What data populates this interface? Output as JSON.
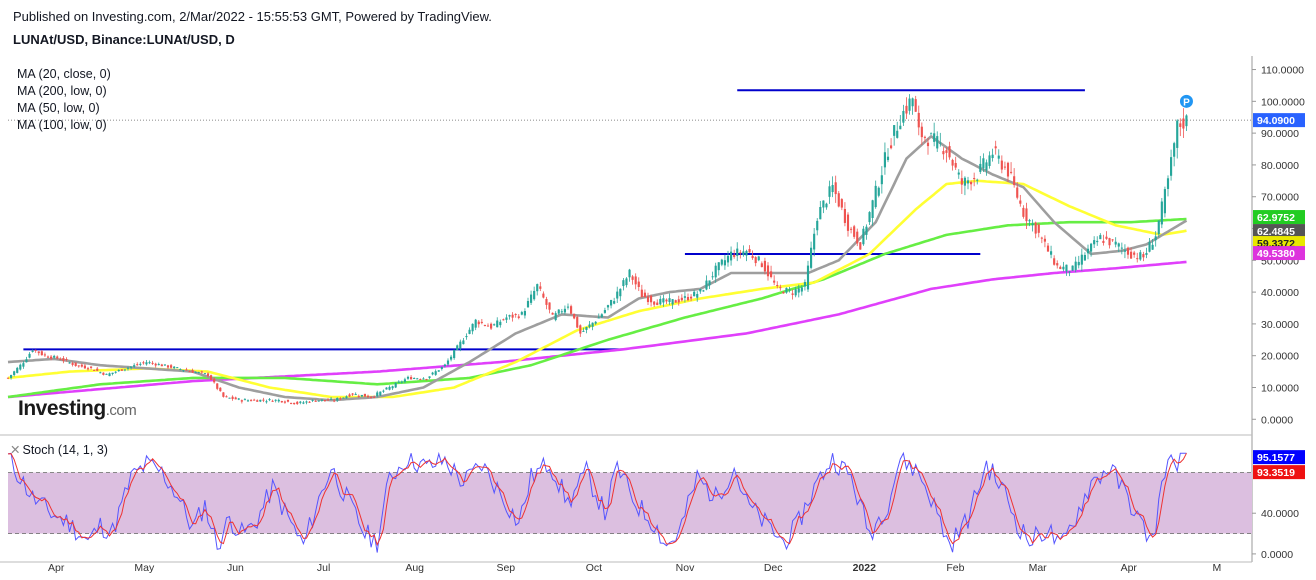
{
  "header": {
    "published": "Published on Investing.com, 2/Mar/2022 - 15:55:53 GMT, Powered by TradingView.",
    "symbol": "LUNAt/USD, Binance:LUNAt/USD, D"
  },
  "logo": {
    "main": "Investing",
    "suffix": ".com"
  },
  "legend": {
    "ma": [
      {
        "label": "MA (20, close, 0)",
        "color": "#9e9e9e"
      },
      {
        "label": "MA (200, low, 0)",
        "color": "#e040fb"
      },
      {
        "label": "MA (50, low, 0)",
        "color": "#ffff33"
      },
      {
        "label": "MA (100, low, 0)",
        "color": "#66ee44"
      }
    ],
    "stoch": "Stoch (14, 1, 3)"
  },
  "colors": {
    "up": "#26a69a",
    "down": "#ef5350",
    "level_line": "#0000cc",
    "stoch_k": "#5555ff",
    "stoch_d": "#ee3333",
    "stoch_band": "#dcbfe0"
  },
  "chart_data": [
    {
      "type": "candlestick",
      "xlabel": "",
      "ylabel": "",
      "x_ticks": [
        "Apr",
        "May",
        "Jun",
        "Jul",
        "Aug",
        "Sep",
        "Oct",
        "Nov",
        "Dec",
        "2022",
        "Feb",
        "Mar",
        "Apr",
        "M"
      ],
      "y_ticks": [
        "110.0000",
        "100.0000",
        "90.0000",
        "80.0000",
        "70.0000",
        "60.0000",
        "50.0000",
        "40.0000",
        "30.0000",
        "20.0000",
        "10.0000",
        "0.0000"
      ],
      "y_tick_values": [
        110,
        100,
        90,
        80,
        70,
        60,
        50,
        40,
        30,
        20,
        10,
        0
      ],
      "ylim": [
        -4,
        113
      ],
      "x_range_days": [
        0,
        403
      ],
      "current_price": {
        "label": "94.0900",
        "value": 94.09
      },
      "ma_tags": [
        {
          "label": "62.9752",
          "value": 62.9752,
          "color": "#22cc22"
        },
        {
          "label": "62.4845",
          "value": 62.4845,
          "color": "#555555"
        },
        {
          "label": "59.3372",
          "value": 59.3372,
          "color": "#e8e800"
        },
        {
          "label": "49.5380",
          "value": 49.538,
          "color": "#dd33dd"
        }
      ],
      "price_path": [
        [
          0,
          13
        ],
        [
          5,
          18
        ],
        [
          8,
          22
        ],
        [
          12,
          20
        ],
        [
          17,
          19
        ],
        [
          22,
          17
        ],
        [
          27,
          16
        ],
        [
          32,
          14
        ],
        [
          38,
          16
        ],
        [
          45,
          18
        ],
        [
          50,
          17
        ],
        [
          55,
          16
        ],
        [
          60,
          15
        ],
        [
          65,
          14
        ],
        [
          70,
          7
        ],
        [
          76,
          6
        ],
        [
          82,
          6
        ],
        [
          88,
          6
        ],
        [
          94,
          5
        ],
        [
          100,
          6
        ],
        [
          106,
          6
        ],
        [
          112,
          8
        ],
        [
          118,
          7
        ],
        [
          124,
          10
        ],
        [
          130,
          13
        ],
        [
          136,
          13
        ],
        [
          142,
          17
        ],
        [
          147,
          24
        ],
        [
          152,
          31
        ],
        [
          157,
          29
        ],
        [
          162,
          32
        ],
        [
          167,
          33
        ],
        [
          172,
          42
        ],
        [
          177,
          32
        ],
        [
          182,
          36
        ],
        [
          186,
          27
        ],
        [
          192,
          32
        ],
        [
          197,
          38
        ],
        [
          202,
          46
        ],
        [
          206,
          39
        ],
        [
          210,
          37
        ],
        [
          216,
          37
        ],
        [
          220,
          38
        ],
        [
          225,
          40
        ],
        [
          230,
          47
        ],
        [
          235,
          52
        ],
        [
          240,
          53
        ],
        [
          245,
          49
        ],
        [
          250,
          41
        ],
        [
          255,
          40
        ],
        [
          259,
          42
        ],
        [
          263,
          64
        ],
        [
          268,
          73
        ],
        [
          273,
          61
        ],
        [
          277,
          55
        ],
        [
          281,
          68
        ],
        [
          286,
          85
        ],
        [
          290,
          95
        ],
        [
          294,
          101
        ],
        [
          296,
          90
        ],
        [
          300,
          88
        ],
        [
          305,
          85
        ],
        [
          310,
          74
        ],
        [
          315,
          77
        ],
        [
          320,
          84
        ],
        [
          325,
          78
        ],
        [
          330,
          65
        ],
        [
          334,
          60
        ],
        [
          338,
          53
        ],
        [
          341,
          48
        ],
        [
          346,
          47
        ],
        [
          350,
          52
        ],
        [
          355,
          57
        ],
        [
          360,
          55
        ],
        [
          365,
          52
        ],
        [
          369,
          51
        ],
        [
          373,
          58
        ],
        [
          377,
          75
        ],
        [
          380,
          92
        ],
        [
          383,
          94
        ]
      ],
      "ma20_path": [
        [
          0,
          18
        ],
        [
          15,
          19
        ],
        [
          30,
          17
        ],
        [
          45,
          16
        ],
        [
          60,
          15
        ],
        [
          75,
          10
        ],
        [
          90,
          7
        ],
        [
          105,
          6
        ],
        [
          120,
          7
        ],
        [
          135,
          10
        ],
        [
          150,
          18
        ],
        [
          165,
          27
        ],
        [
          180,
          33
        ],
        [
          195,
          32
        ],
        [
          205,
          38
        ],
        [
          215,
          40
        ],
        [
          225,
          41
        ],
        [
          235,
          46
        ],
        [
          248,
          46
        ],
        [
          260,
          46
        ],
        [
          270,
          50
        ],
        [
          282,
          62
        ],
        [
          292,
          82
        ],
        [
          300,
          89
        ],
        [
          310,
          82
        ],
        [
          320,
          77
        ],
        [
          330,
          73
        ],
        [
          340,
          62
        ],
        [
          352,
          52
        ],
        [
          362,
          53
        ],
        [
          370,
          55
        ],
        [
          383,
          62.5
        ]
      ],
      "ma50_path": [
        [
          0,
          13
        ],
        [
          20,
          15
        ],
        [
          45,
          16
        ],
        [
          65,
          15
        ],
        [
          85,
          10
        ],
        [
          105,
          7
        ],
        [
          125,
          7
        ],
        [
          145,
          10
        ],
        [
          165,
          18
        ],
        [
          185,
          28
        ],
        [
          205,
          34
        ],
        [
          225,
          38
        ],
        [
          245,
          41
        ],
        [
          262,
          43
        ],
        [
          280,
          52
        ],
        [
          295,
          66
        ],
        [
          305,
          74
        ],
        [
          315,
          75
        ],
        [
          330,
          74
        ],
        [
          345,
          67
        ],
        [
          360,
          61
        ],
        [
          375,
          58
        ],
        [
          383,
          59.3
        ]
      ],
      "ma100_path": [
        [
          0,
          7
        ],
        [
          30,
          11
        ],
        [
          60,
          13
        ],
        [
          90,
          13
        ],
        [
          120,
          11
        ],
        [
          150,
          13
        ],
        [
          170,
          17
        ],
        [
          195,
          25
        ],
        [
          220,
          32
        ],
        [
          245,
          38
        ],
        [
          265,
          44
        ],
        [
          285,
          52
        ],
        [
          305,
          58
        ],
        [
          325,
          61
        ],
        [
          345,
          62
        ],
        [
          365,
          62
        ],
        [
          383,
          63
        ]
      ],
      "ma200_path": [
        [
          0,
          7
        ],
        [
          60,
          12
        ],
        [
          120,
          15
        ],
        [
          160,
          18
        ],
        [
          200,
          22
        ],
        [
          240,
          27
        ],
        [
          270,
          33
        ],
        [
          300,
          41
        ],
        [
          320,
          44
        ],
        [
          340,
          46
        ],
        [
          360,
          47.5
        ],
        [
          383,
          49.5
        ]
      ],
      "levels": [
        {
          "value": 22,
          "x0": 5,
          "x1": 200
        },
        {
          "value": 52,
          "x0": 220,
          "x1": 316
        },
        {
          "value": 103.5,
          "x0": 237,
          "x1": 350
        }
      ],
      "p_marker": {
        "label": "P",
        "x": 383,
        "value": 100
      }
    },
    {
      "type": "line",
      "title": "",
      "ylim": [
        -6,
        112
      ],
      "y_ticks": [
        "40.0000",
        "0.0000"
      ],
      "y_tick_values": [
        40,
        0
      ],
      "band": [
        20,
        80
      ],
      "last_values": [
        {
          "label": "95.1577",
          "value": 95.1577,
          "color": "#0000ff"
        },
        {
          "label": "93.3519",
          "value": 93.3519,
          "color": "#ee1111"
        }
      ],
      "k_anchors": [
        [
          0,
          95
        ],
        [
          8,
          55
        ],
        [
          14,
          40
        ],
        [
          20,
          30
        ],
        [
          26,
          12
        ],
        [
          30,
          28
        ],
        [
          34,
          22
        ],
        [
          40,
          75
        ],
        [
          45,
          88
        ],
        [
          50,
          80
        ],
        [
          55,
          58
        ],
        [
          60,
          25
        ],
        [
          64,
          48
        ],
        [
          68,
          8
        ],
        [
          72,
          35
        ],
        [
          76,
          20
        ],
        [
          80,
          28
        ],
        [
          86,
          65
        ],
        [
          92,
          30
        ],
        [
          96,
          8
        ],
        [
          100,
          45
        ],
        [
          105,
          85
        ],
        [
          110,
          55
        ],
        [
          116,
          20
        ],
        [
          120,
          12
        ],
        [
          124,
          75
        ],
        [
          130,
          95
        ],
        [
          136,
          85
        ],
        [
          142,
          92
        ],
        [
          148,
          70
        ],
        [
          154,
          88
        ],
        [
          160,
          60
        ],
        [
          166,
          30
        ],
        [
          170,
          75
        ],
        [
          176,
          90
        ],
        [
          182,
          50
        ],
        [
          188,
          80
        ],
        [
          194,
          40
        ],
        [
          198,
          85
        ],
        [
          204,
          50
        ],
        [
          210,
          30
        ],
        [
          214,
          8
        ],
        [
          218,
          20
        ],
        [
          224,
          75
        ],
        [
          230,
          55
        ],
        [
          236,
          85
        ],
        [
          240,
          50
        ],
        [
          246,
          30
        ],
        [
          252,
          12
        ],
        [
          256,
          25
        ],
        [
          262,
          65
        ],
        [
          268,
          95
        ],
        [
          274,
          75
        ],
        [
          280,
          20
        ],
        [
          286,
          50
        ],
        [
          290,
          95
        ],
        [
          296,
          80
        ],
        [
          300,
          55
        ],
        [
          306,
          8
        ],
        [
          312,
          35
        ],
        [
          318,
          88
        ],
        [
          324,
          60
        ],
        [
          328,
          30
        ],
        [
          332,
          12
        ],
        [
          338,
          25
        ],
        [
          342,
          5
        ],
        [
          346,
          30
        ],
        [
          352,
          70
        ],
        [
          358,
          85
        ],
        [
          364,
          55
        ],
        [
          368,
          30
        ],
        [
          372,
          12
        ],
        [
          376,
          85
        ],
        [
          380,
          92
        ],
        [
          383,
          95
        ]
      ]
    }
  ]
}
